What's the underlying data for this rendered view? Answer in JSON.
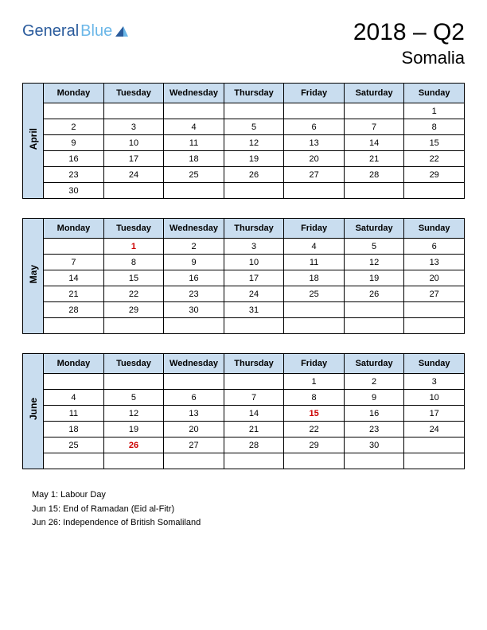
{
  "logo": {
    "part1": "General",
    "part2": "Blue"
  },
  "title": {
    "main": "2018 – Q2",
    "sub": "Somalia"
  },
  "day_headers": [
    "Monday",
    "Tuesday",
    "Wednesday",
    "Thursday",
    "Friday",
    "Saturday",
    "Sunday"
  ],
  "colors": {
    "header_bg": "#c9ddef",
    "border": "#000000",
    "holiday": "#cc0000",
    "logo1": "#2a5b9c",
    "logo2": "#6bb7e8"
  },
  "months": [
    {
      "name": "April",
      "weeks": [
        [
          "",
          "",
          "",
          "",
          "",
          "",
          "1"
        ],
        [
          "2",
          "3",
          "4",
          "5",
          "6",
          "7",
          "8"
        ],
        [
          "9",
          "10",
          "11",
          "12",
          "13",
          "14",
          "15"
        ],
        [
          "16",
          "17",
          "18",
          "19",
          "20",
          "21",
          "22"
        ],
        [
          "23",
          "24",
          "25",
          "26",
          "27",
          "28",
          "29"
        ],
        [
          "30",
          "",
          "",
          "",
          "",
          "",
          ""
        ]
      ],
      "holidays": []
    },
    {
      "name": "May",
      "weeks": [
        [
          "",
          "1",
          "2",
          "3",
          "4",
          "5",
          "6"
        ],
        [
          "7",
          "8",
          "9",
          "10",
          "11",
          "12",
          "13"
        ],
        [
          "14",
          "15",
          "16",
          "17",
          "18",
          "19",
          "20"
        ],
        [
          "21",
          "22",
          "23",
          "24",
          "25",
          "26",
          "27"
        ],
        [
          "28",
          "29",
          "30",
          "31",
          "",
          "",
          ""
        ],
        [
          "",
          "",
          "",
          "",
          "",
          "",
          ""
        ]
      ],
      "holidays": [
        "1"
      ]
    },
    {
      "name": "June",
      "weeks": [
        [
          "",
          "",
          "",
          "",
          "1",
          "2",
          "3"
        ],
        [
          "4",
          "5",
          "6",
          "7",
          "8",
          "9",
          "10"
        ],
        [
          "11",
          "12",
          "13",
          "14",
          "15",
          "16",
          "17"
        ],
        [
          "18",
          "19",
          "20",
          "21",
          "22",
          "23",
          "24"
        ],
        [
          "25",
          "26",
          "27",
          "28",
          "29",
          "30",
          ""
        ],
        [
          "",
          "",
          "",
          "",
          "",
          "",
          ""
        ]
      ],
      "holidays": [
        "15",
        "26"
      ]
    }
  ],
  "holiday_notes": [
    "May 1: Labour Day",
    "Jun 15: End of Ramadan (Eid al-Fitr)",
    "Jun 26: Independence of British Somaliland"
  ]
}
